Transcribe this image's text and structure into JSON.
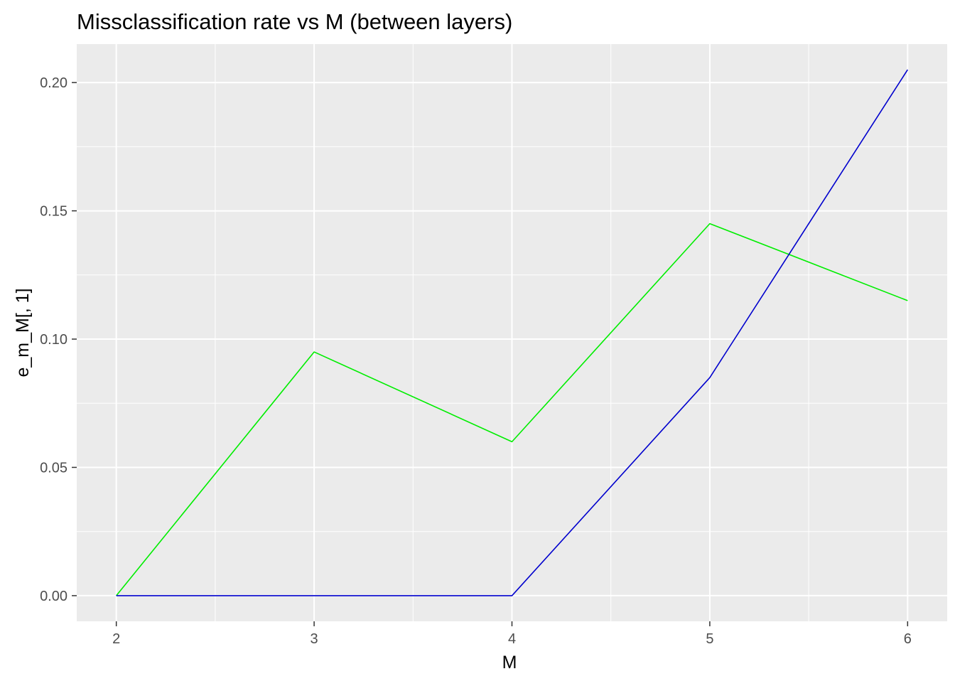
{
  "chart_data": {
    "type": "line",
    "title": "Missclassification rate vs M (between layers)",
    "xlabel": "M",
    "ylabel": "e_m_M[, 1]",
    "x": [
      2,
      3,
      4,
      5,
      6
    ],
    "xlim": [
      1.8,
      6.2
    ],
    "ylim": [
      -0.01,
      0.215
    ],
    "x_ticks": [
      2,
      3,
      4,
      5,
      6
    ],
    "x_tick_labels": [
      "2",
      "3",
      "4",
      "5",
      "6"
    ],
    "y_ticks": [
      0.0,
      0.05,
      0.1,
      0.15,
      0.2
    ],
    "y_tick_labels": [
      "0.00",
      "0.05",
      "0.10",
      "0.15",
      "0.20"
    ],
    "grid": true,
    "panel_background": "#ebebeb",
    "grid_color": "#ffffff",
    "series": [
      {
        "values": [
          0.0,
          0.095,
          0.06,
          0.145,
          0.115
        ],
        "color": "#00ee00"
      },
      {
        "values": [
          0.0,
          0.0,
          0.0,
          0.085,
          0.205
        ],
        "color": "#0000cd"
      }
    ]
  }
}
